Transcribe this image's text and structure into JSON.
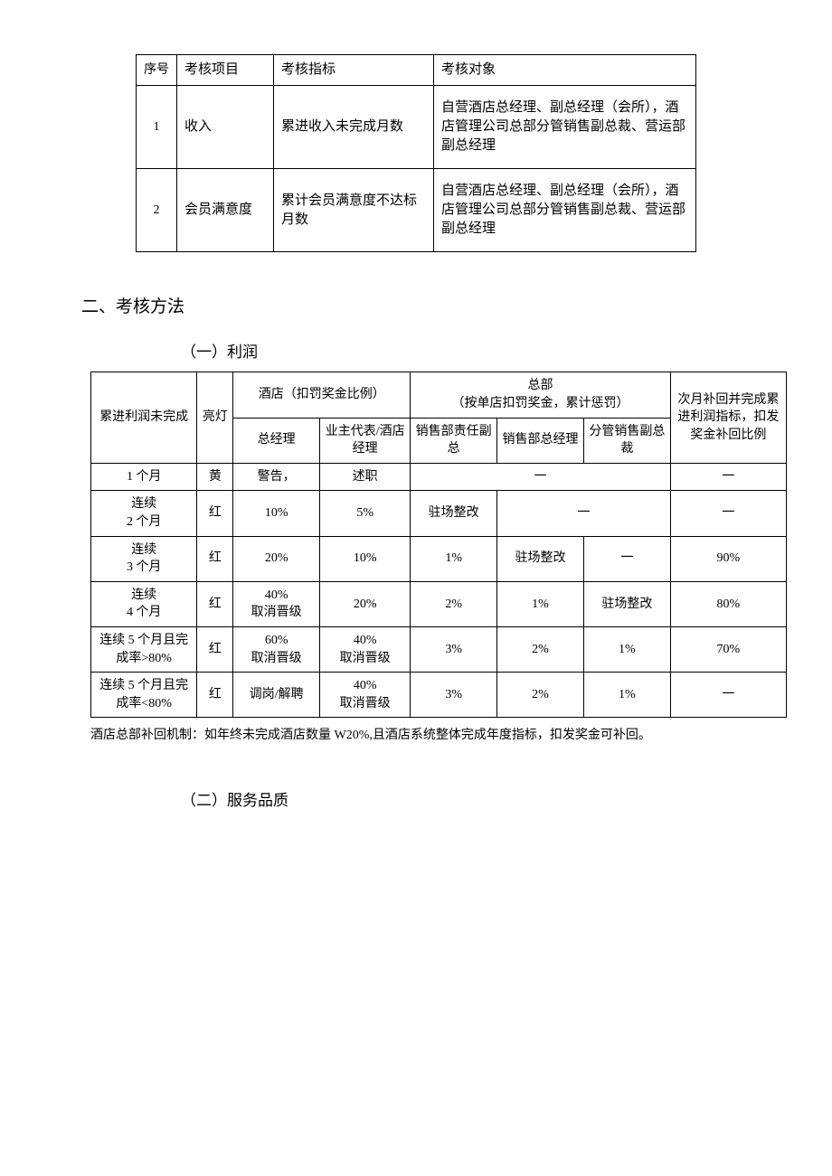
{
  "table1": {
    "headers": {
      "c0": "序号",
      "c1": "考核项目",
      "c2": "考核指标",
      "c3": "考核对象"
    },
    "rows": [
      {
        "n": "1",
        "proj": "收入",
        "metric": "累进收入未完成月数",
        "target": "自营酒店总经理、副总经理（会所），酒店管理公司总部分管销售副总裁、营运部副总经理"
      },
      {
        "n": "2",
        "proj": "会员满意度",
        "metric": "累计会员满意度不达标月数",
        "target": "自营酒店总经理、副总经理（会所），酒店管理公司总部分管销售副总裁、营运部副总经理"
      }
    ]
  },
  "section_heading": "二、考核方法",
  "sub_heading_1": "（一）利润",
  "table2": {
    "h": {
      "col0": "累进利润未完成",
      "col1": "亮灯",
      "group_hotel": "酒店（扣罚奖金比例）",
      "group_hq": "总部\n（按单店扣罚奖金，累计惩罚）",
      "col7": "次月补回并完成累进利润指标，扣发奖金补回比例",
      "sub_gm": "总经理",
      "sub_owner": "业主代表/酒店经理",
      "sub_dvp": "销售部责任副总",
      "sub_sm": "销售部总经理",
      "sub_svp": "分管销售副总裁"
    },
    "rows": [
      {
        "c0": "1 个月",
        "c1": "黄",
        "c2": "警告，",
        "c3": "述职",
        "c4_6": "一",
        "c7": "一",
        "merge456": true
      },
      {
        "c0": "连续\n2 个月",
        "c1": "红",
        "c2": "10%",
        "c3": "5%",
        "c4": "驻场整改",
        "c5_6": "一",
        "c7": "一",
        "merge56": true
      },
      {
        "c0": "连续\n3 个月",
        "c1": "红",
        "c2": "20%",
        "c3": "10%",
        "c4": "1%",
        "c5": "驻场整改",
        "c6": "一",
        "c7": "90%"
      },
      {
        "c0": "连续\n4 个月",
        "c1": "红",
        "c2": "40%\n取消晋级",
        "c3": "20%",
        "c4": "2%",
        "c5": "1%",
        "c6": "驻场整改",
        "c7": "80%"
      },
      {
        "c0": "连续 5 个月且完成率>80%",
        "c1": "红",
        "c2": "60%\n取消晋级",
        "c3": "40%\n取消晋级",
        "c4": "3%",
        "c5": "2%",
        "c6": "1%",
        "c7": "70%"
      },
      {
        "c0": "连续 5 个月且完成率<80%",
        "c1": "红",
        "c2": "调岗/解聘",
        "c3": "40%\n取消晋级",
        "c4": "3%",
        "c5": "2%",
        "c6": "1%",
        "c7": "一"
      }
    ]
  },
  "footnote": "酒店总部补回机制：如年终未完成酒店数量 W20%,且酒店系统整体完成年度指标，扣发奖金可补回。",
  "sub_heading_2": "（二）服务品质"
}
